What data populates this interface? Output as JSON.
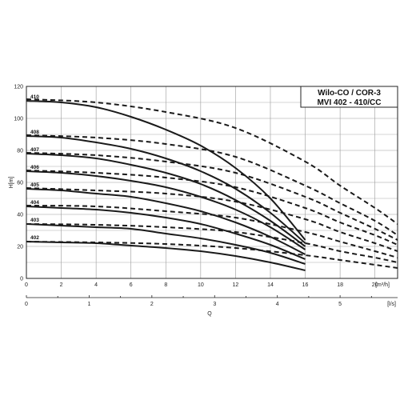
{
  "chart_data": {
    "type": "line",
    "title_lines": [
      "Wilo-CO / COR-3",
      "MVI 402 - 410/CC"
    ],
    "ylabel": "H[m]",
    "xlabel": "Q",
    "x_unit_primary": "[m³/h]",
    "x_unit_secondary": "[l/s]",
    "xlim": [
      0,
      21.3
    ],
    "ylim": [
      0,
      120
    ],
    "x_ticks": [
      0,
      2,
      4,
      6,
      8,
      10,
      12,
      14,
      16,
      18,
      20
    ],
    "y_ticks": [
      0,
      20,
      40,
      60,
      80,
      100,
      120
    ],
    "x2_ticks": [
      0,
      1,
      2,
      3,
      4,
      5
    ],
    "grid": true,
    "series": [
      {
        "name": "410",
        "solid": [
          [
            0,
            111
          ],
          [
            2,
            110
          ],
          [
            4,
            107
          ],
          [
            6,
            101
          ],
          [
            8,
            93
          ],
          [
            10,
            83
          ],
          [
            12,
            69
          ],
          [
            14,
            50
          ],
          [
            16,
            24
          ]
        ],
        "dashed": [
          [
            0,
            112
          ],
          [
            4,
            110
          ],
          [
            8,
            104
          ],
          [
            12,
            94
          ],
          [
            16,
            73
          ],
          [
            18,
            58
          ],
          [
            20,
            44
          ],
          [
            21.3,
            34
          ]
        ]
      },
      {
        "name": "408",
        "solid": [
          [
            0,
            89
          ],
          [
            2,
            88
          ],
          [
            4,
            85
          ],
          [
            6,
            81
          ],
          [
            8,
            75
          ],
          [
            10,
            67
          ],
          [
            12,
            56
          ],
          [
            14,
            41
          ],
          [
            16,
            22
          ]
        ],
        "dashed": [
          [
            0,
            89.5
          ],
          [
            4,
            88
          ],
          [
            8,
            84
          ],
          [
            12,
            76
          ],
          [
            16,
            58
          ],
          [
            18,
            47
          ],
          [
            20,
            36
          ],
          [
            21.3,
            27
          ]
        ]
      },
      {
        "name": "407",
        "solid": [
          [
            0,
            78
          ],
          [
            2,
            77
          ],
          [
            4,
            75
          ],
          [
            6,
            71
          ],
          [
            8,
            66
          ],
          [
            10,
            59
          ],
          [
            12,
            49
          ],
          [
            14,
            36
          ],
          [
            16,
            20
          ]
        ],
        "dashed": [
          [
            0,
            78.5
          ],
          [
            4,
            77
          ],
          [
            8,
            73
          ],
          [
            12,
            66
          ],
          [
            16,
            51
          ],
          [
            18,
            41
          ],
          [
            20,
            31
          ],
          [
            21.3,
            24
          ]
        ]
      },
      {
        "name": "406",
        "solid": [
          [
            0,
            67
          ],
          [
            2,
            66
          ],
          [
            4,
            64
          ],
          [
            6,
            61
          ],
          [
            8,
            57
          ],
          [
            10,
            51
          ],
          [
            12,
            43
          ],
          [
            14,
            32
          ],
          [
            16,
            18
          ]
        ],
        "dashed": [
          [
            0,
            67.5
          ],
          [
            4,
            66
          ],
          [
            8,
            63
          ],
          [
            12,
            57
          ],
          [
            16,
            44
          ],
          [
            18,
            35
          ],
          [
            20,
            27
          ],
          [
            21.3,
            21
          ]
        ]
      },
      {
        "name": "405",
        "solid": [
          [
            0,
            56
          ],
          [
            2,
            55
          ],
          [
            4,
            53
          ],
          [
            6,
            51
          ],
          [
            8,
            47
          ],
          [
            10,
            42
          ],
          [
            12,
            35
          ],
          [
            14,
            26
          ],
          [
            16,
            15
          ]
        ],
        "dashed": [
          [
            0,
            56.5
          ],
          [
            4,
            55
          ],
          [
            8,
            53
          ],
          [
            12,
            48
          ],
          [
            16,
            37
          ],
          [
            18,
            29
          ],
          [
            20,
            22
          ],
          [
            21.3,
            17
          ]
        ]
      },
      {
        "name": "404",
        "solid": [
          [
            0,
            45
          ],
          [
            2,
            44
          ],
          [
            4,
            43
          ],
          [
            6,
            41
          ],
          [
            8,
            38
          ],
          [
            10,
            34
          ],
          [
            12,
            28
          ],
          [
            14,
            21
          ],
          [
            16,
            12
          ]
        ],
        "dashed": [
          [
            0,
            45.5
          ],
          [
            4,
            45
          ],
          [
            8,
            42
          ],
          [
            12,
            38
          ],
          [
            16,
            29
          ],
          [
            18,
            23
          ],
          [
            20,
            17
          ],
          [
            21.3,
            13
          ]
        ]
      },
      {
        "name": "403",
        "solid": [
          [
            0,
            34
          ],
          [
            2,
            33
          ],
          [
            4,
            32
          ],
          [
            6,
            31
          ],
          [
            8,
            28
          ],
          [
            10,
            25
          ],
          [
            12,
            21
          ],
          [
            14,
            16
          ],
          [
            16,
            9
          ]
        ],
        "dashed": [
          [
            0,
            34
          ],
          [
            4,
            33.5
          ],
          [
            8,
            32
          ],
          [
            12,
            29
          ],
          [
            16,
            22
          ],
          [
            18,
            17
          ],
          [
            20,
            13
          ],
          [
            21.3,
            10
          ]
        ]
      },
      {
        "name": "402",
        "solid": [
          [
            0,
            23
          ],
          [
            2,
            22.5
          ],
          [
            4,
            22
          ],
          [
            6,
            20.5
          ],
          [
            8,
            19
          ],
          [
            10,
            17
          ],
          [
            12,
            14
          ],
          [
            14,
            10
          ],
          [
            16,
            5
          ]
        ],
        "dashed": [
          [
            0,
            23
          ],
          [
            4,
            22.5
          ],
          [
            8,
            21.5
          ],
          [
            12,
            19
          ],
          [
            16,
            14.5
          ],
          [
            18,
            11.5
          ],
          [
            20,
            8.5
          ],
          [
            21.3,
            6.5
          ]
        ]
      }
    ]
  }
}
